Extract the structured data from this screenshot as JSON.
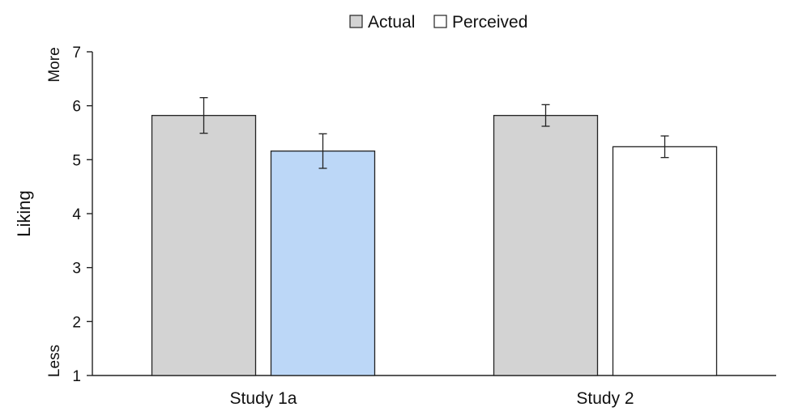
{
  "chart_data": {
    "type": "bar",
    "categories": [
      "Study 1a",
      "Study 2"
    ],
    "series": [
      {
        "name": "Actual",
        "values": [
          5.82,
          5.82
        ],
        "error": [
          0.33,
          0.2
        ],
        "fills": [
          "#d3d3d3",
          "#d3d3d3"
        ]
      },
      {
        "name": "Perceived",
        "values": [
          5.16,
          5.24
        ],
        "error": [
          0.32,
          0.2
        ],
        "fills": [
          "#bcd7f7",
          "#ffffff"
        ]
      }
    ],
    "ylabel": "Liking",
    "ylim": [
      1,
      7
    ],
    "yticks": [
      1,
      2,
      3,
      4,
      5,
      6,
      7
    ],
    "yaxis_end_labels": {
      "top": "More",
      "bottom": "Less"
    },
    "grid": false,
    "legend_position": "top-center",
    "colors": {
      "bar_stroke": "#222222",
      "axis": "#222222"
    }
  }
}
